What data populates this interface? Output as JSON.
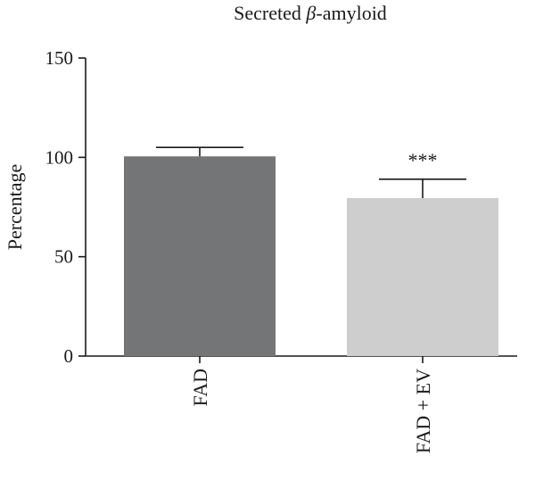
{
  "chart_data": {
    "type": "bar",
    "title_prefix": "Secreted ",
    "title_symbol": "β",
    "title_suffix": "-amyloid",
    "ylabel": "Percentage",
    "xlabel": "",
    "ylim": [
      0,
      150
    ],
    "yticks": [
      0,
      50,
      100,
      150
    ],
    "categories": [
      "FAD",
      "FAD + EV"
    ],
    "values": [
      100.5,
      79.5
    ],
    "errors": [
      4.5,
      9.5
    ],
    "colors": [
      "#737577",
      "#cdcecd"
    ],
    "annotations": [
      "",
      "***"
    ],
    "grid": false,
    "legend": "none"
  }
}
